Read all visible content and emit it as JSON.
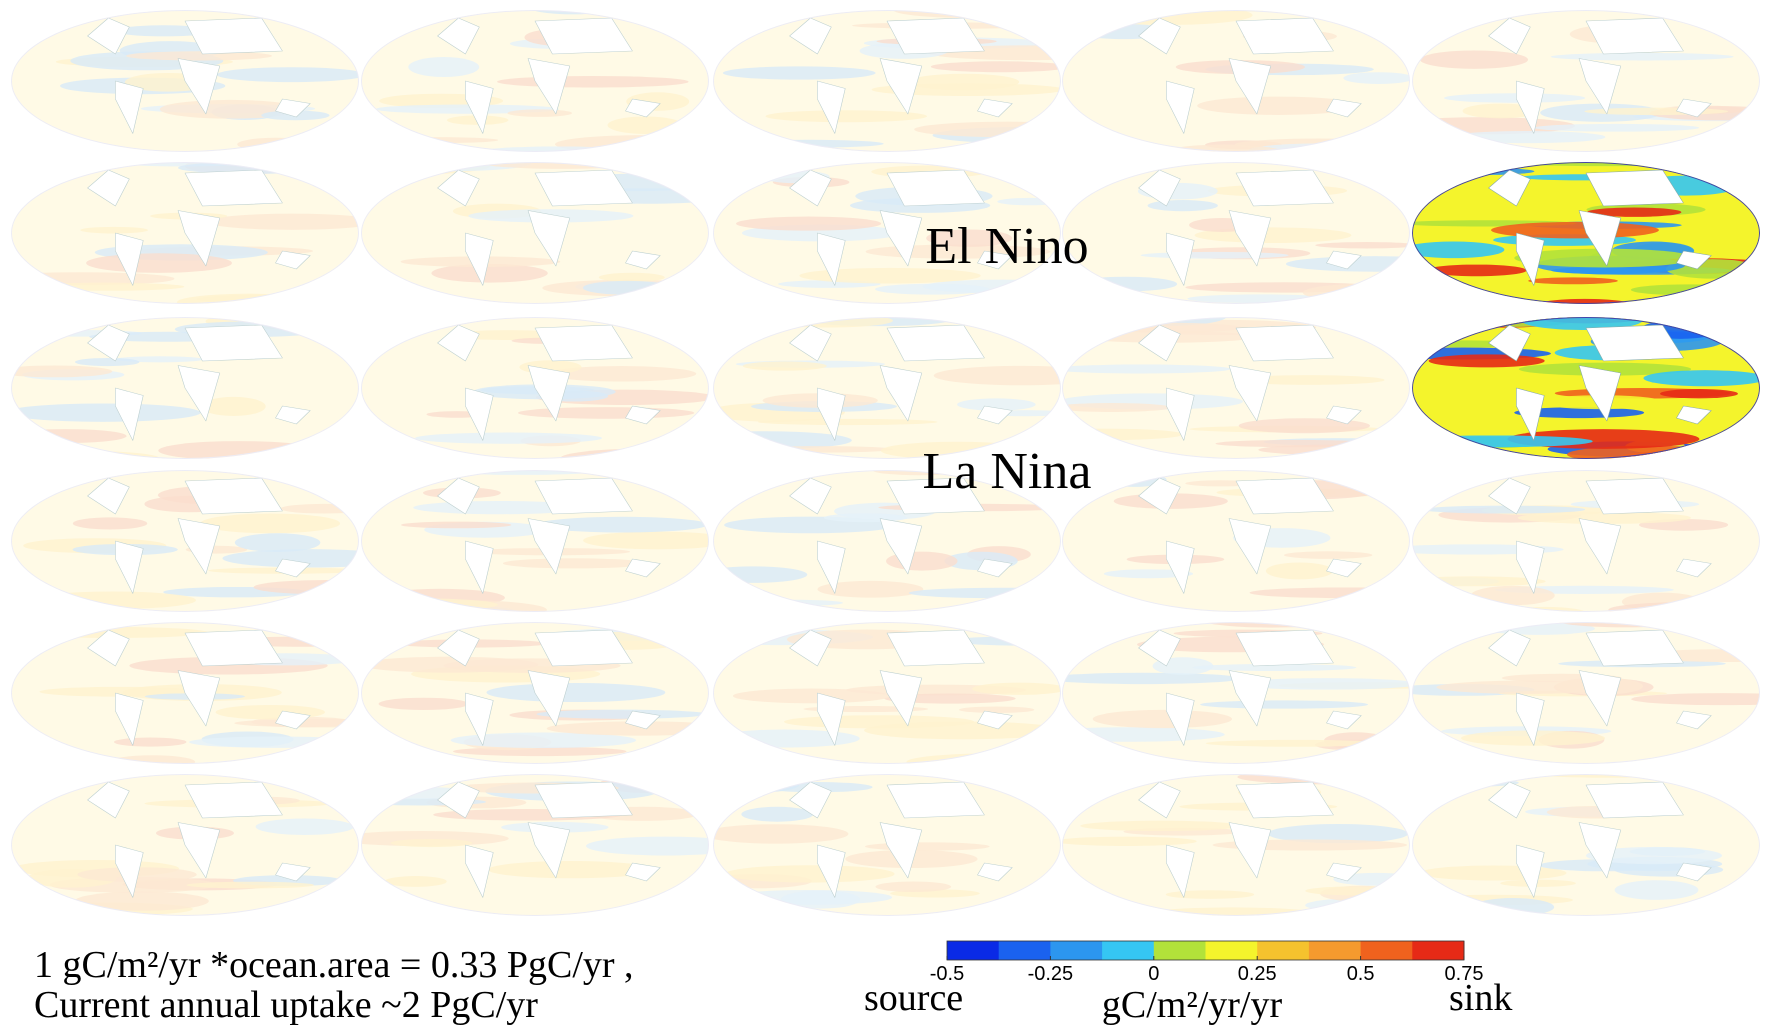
{
  "labels": {
    "el_nino": "El Nino",
    "la_nina": "La Nina"
  },
  "footnote": [
    "1 gC/m²/yr *ocean.area = 0.33 PgC/yr ,",
    "Current annual uptake ~2 PgC/yr"
  ],
  "colorbar": {
    "lim": [
      -0.5,
      0.75
    ],
    "ticks": [
      -0.5,
      -0.25,
      0,
      0.25,
      0.5,
      0.75
    ],
    "colors": [
      "#0a2ae6",
      "#1a62ef",
      "#2c96ef",
      "#35c6f3",
      "#b2e23a",
      "#f4f42c",
      "#f5c22e",
      "#f59a2e",
      "#f0621e",
      "#e62a16"
    ],
    "left_label": "source",
    "units": "gC/m²/yr/yr",
    "right_label": "sink"
  }
}
